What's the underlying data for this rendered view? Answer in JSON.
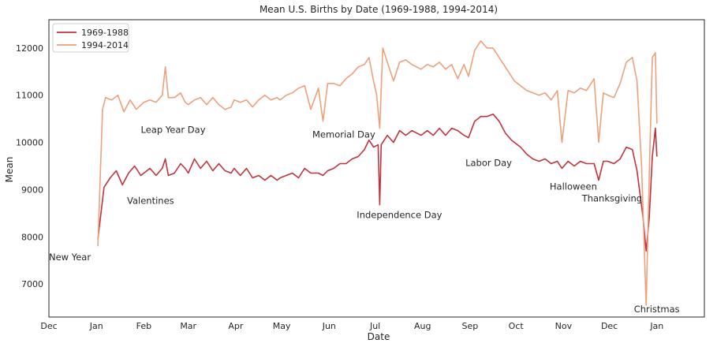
{
  "chart_data": {
    "type": "line",
    "title": "Mean U.S. Births by Date (1969-1988, 1994-2014)",
    "xlabel": "Date",
    "ylabel": "Mean",
    "x_ticks": [
      "Dec",
      "Jan",
      "Feb",
      "Mar",
      "Apr",
      "May",
      "Jun",
      "Jul",
      "Aug",
      "Sep",
      "Oct",
      "Nov",
      "Dec",
      "Jan"
    ],
    "xlim_days": [
      -31,
      397
    ],
    "ylim": [
      6300,
      12600
    ],
    "y_ticks": [
      7000,
      8000,
      9000,
      10000,
      11000,
      12000
    ],
    "grid": false,
    "legend_position": "top-left",
    "series": [
      {
        "name": "1969-1988",
        "color": "#c0333d",
        "points": [
          [
            1,
            7950
          ],
          [
            5,
            9050
          ],
          [
            9,
            9250
          ],
          [
            13,
            9400
          ],
          [
            17,
            9100
          ],
          [
            21,
            9350
          ],
          [
            25,
            9500
          ],
          [
            29,
            9300
          ],
          [
            31,
            9350
          ],
          [
            35,
            9450
          ],
          [
            39,
            9300
          ],
          [
            43,
            9450
          ],
          [
            45,
            9650
          ],
          [
            47,
            9300
          ],
          [
            51,
            9350
          ],
          [
            55,
            9550
          ],
          [
            58,
            9450
          ],
          [
            60,
            9350
          ],
          [
            64,
            9650
          ],
          [
            68,
            9450
          ],
          [
            72,
            9600
          ],
          [
            76,
            9400
          ],
          [
            80,
            9550
          ],
          [
            84,
            9400
          ],
          [
            88,
            9350
          ],
          [
            90,
            9450
          ],
          [
            94,
            9300
          ],
          [
            98,
            9450
          ],
          [
            102,
            9250
          ],
          [
            106,
            9300
          ],
          [
            110,
            9200
          ],
          [
            114,
            9300
          ],
          [
            118,
            9200
          ],
          [
            120,
            9250
          ],
          [
            124,
            9300
          ],
          [
            128,
            9350
          ],
          [
            132,
            9250
          ],
          [
            136,
            9450
          ],
          [
            140,
            9350
          ],
          [
            145,
            9350
          ],
          [
            148,
            9300
          ],
          [
            151,
            9400
          ],
          [
            155,
            9450
          ],
          [
            159,
            9550
          ],
          [
            163,
            9550
          ],
          [
            167,
            9650
          ],
          [
            171,
            9700
          ],
          [
            175,
            9850
          ],
          [
            178,
            10050
          ],
          [
            181,
            9900
          ],
          [
            184,
            9950
          ],
          [
            185,
            8680
          ],
          [
            186,
            9950
          ],
          [
            190,
            10150
          ],
          [
            194,
            10000
          ],
          [
            198,
            10250
          ],
          [
            202,
            10150
          ],
          [
            206,
            10250
          ],
          [
            212,
            10150
          ],
          [
            216,
            10250
          ],
          [
            220,
            10150
          ],
          [
            224,
            10300
          ],
          [
            228,
            10150
          ],
          [
            232,
            10300
          ],
          [
            236,
            10250
          ],
          [
            240,
            10150
          ],
          [
            243,
            10100
          ],
          [
            247,
            10450
          ],
          [
            251,
            10550
          ],
          [
            255,
            10550
          ],
          [
            259,
            10600
          ],
          [
            263,
            10450
          ],
          [
            267,
            10200
          ],
          [
            271,
            10050
          ],
          [
            273,
            10000
          ],
          [
            277,
            9900
          ],
          [
            281,
            9750
          ],
          [
            285,
            9650
          ],
          [
            289,
            9600
          ],
          [
            293,
            9650
          ],
          [
            297,
            9550
          ],
          [
            301,
            9600
          ],
          [
            304,
            9450
          ],
          [
            308,
            9600
          ],
          [
            312,
            9500
          ],
          [
            316,
            9600
          ],
          [
            320,
            9550
          ],
          [
            325,
            9550
          ],
          [
            328,
            9200
          ],
          [
            331,
            9600
          ],
          [
            334,
            9600
          ],
          [
            338,
            9550
          ],
          [
            342,
            9650
          ],
          [
            346,
            9900
          ],
          [
            350,
            9850
          ],
          [
            353,
            9400
          ],
          [
            357,
            8400
          ],
          [
            359,
            7700
          ],
          [
            361,
            8400
          ],
          [
            363,
            9700
          ],
          [
            365,
            10300
          ],
          [
            366,
            9700
          ]
        ]
      },
      {
        "name": "1994-2014",
        "color": "#eda07c",
        "points": [
          [
            1,
            7800
          ],
          [
            4,
            10700
          ],
          [
            6,
            10950
          ],
          [
            10,
            10900
          ],
          [
            14,
            11000
          ],
          [
            18,
            10650
          ],
          [
            22,
            10900
          ],
          [
            26,
            10700
          ],
          [
            31,
            10850
          ],
          [
            35,
            10900
          ],
          [
            39,
            10850
          ],
          [
            43,
            11000
          ],
          [
            45,
            11600
          ],
          [
            47,
            10950
          ],
          [
            51,
            10950
          ],
          [
            55,
            11050
          ],
          [
            58,
            10850
          ],
          [
            60,
            10800
          ],
          [
            64,
            10900
          ],
          [
            68,
            10950
          ],
          [
            72,
            10800
          ],
          [
            76,
            10950
          ],
          [
            80,
            10800
          ],
          [
            84,
            10700
          ],
          [
            88,
            10750
          ],
          [
            90,
            10900
          ],
          [
            94,
            10850
          ],
          [
            98,
            10900
          ],
          [
            102,
            10750
          ],
          [
            106,
            10900
          ],
          [
            110,
            11000
          ],
          [
            114,
            10900
          ],
          [
            118,
            10950
          ],
          [
            120,
            10900
          ],
          [
            124,
            11000
          ],
          [
            128,
            11050
          ],
          [
            132,
            11150
          ],
          [
            136,
            11200
          ],
          [
            140,
            10700
          ],
          [
            145,
            11150
          ],
          [
            148,
            10450
          ],
          [
            151,
            11250
          ],
          [
            155,
            11250
          ],
          [
            159,
            11200
          ],
          [
            163,
            11350
          ],
          [
            167,
            11450
          ],
          [
            171,
            11600
          ],
          [
            175,
            11650
          ],
          [
            178,
            11800
          ],
          [
            181,
            11300
          ],
          [
            183,
            11000
          ],
          [
            185,
            10300
          ],
          [
            187,
            12000
          ],
          [
            190,
            11700
          ],
          [
            194,
            11300
          ],
          [
            198,
            11700
          ],
          [
            202,
            11750
          ],
          [
            206,
            11650
          ],
          [
            212,
            11550
          ],
          [
            216,
            11650
          ],
          [
            220,
            11600
          ],
          [
            224,
            11700
          ],
          [
            228,
            11550
          ],
          [
            232,
            11650
          ],
          [
            236,
            11350
          ],
          [
            240,
            11650
          ],
          [
            243,
            11400
          ],
          [
            247,
            11950
          ],
          [
            251,
            12150
          ],
          [
            255,
            12000
          ],
          [
            259,
            12000
          ],
          [
            263,
            11800
          ],
          [
            267,
            11600
          ],
          [
            271,
            11400
          ],
          [
            273,
            11300
          ],
          [
            277,
            11200
          ],
          [
            281,
            11100
          ],
          [
            285,
            11050
          ],
          [
            289,
            11000
          ],
          [
            293,
            11050
          ],
          [
            297,
            10900
          ],
          [
            301,
            11100
          ],
          [
            304,
            10000
          ],
          [
            308,
            11100
          ],
          [
            312,
            11050
          ],
          [
            316,
            11150
          ],
          [
            320,
            11100
          ],
          [
            325,
            11350
          ],
          [
            328,
            10000
          ],
          [
            331,
            11050
          ],
          [
            334,
            11000
          ],
          [
            338,
            10950
          ],
          [
            342,
            11250
          ],
          [
            346,
            11700
          ],
          [
            350,
            11800
          ],
          [
            353,
            11300
          ],
          [
            356,
            9500
          ],
          [
            359,
            6550
          ],
          [
            361,
            9300
          ],
          [
            363,
            11800
          ],
          [
            365,
            11900
          ],
          [
            366,
            10400
          ]
        ]
      }
    ],
    "annotations": [
      {
        "text": "New Year",
        "x": -31,
        "y": 7500
      },
      {
        "text": "Valentines",
        "x": 20,
        "y": 8700
      },
      {
        "text": "Leap Year Day",
        "x": 29,
        "y": 10200
      },
      {
        "text": "Memorial Day",
        "x": 141,
        "y": 10100
      },
      {
        "text": "Independence Day",
        "x": 170,
        "y": 8400
      },
      {
        "text": "Labor Day",
        "x": 241,
        "y": 9500
      },
      {
        "text": "Halloween",
        "x": 296,
        "y": 9000
      },
      {
        "text": "Thanksgiving",
        "x": 317,
        "y": 8750
      },
      {
        "text": "Christmas",
        "x": 351,
        "y": 6400
      }
    ]
  }
}
